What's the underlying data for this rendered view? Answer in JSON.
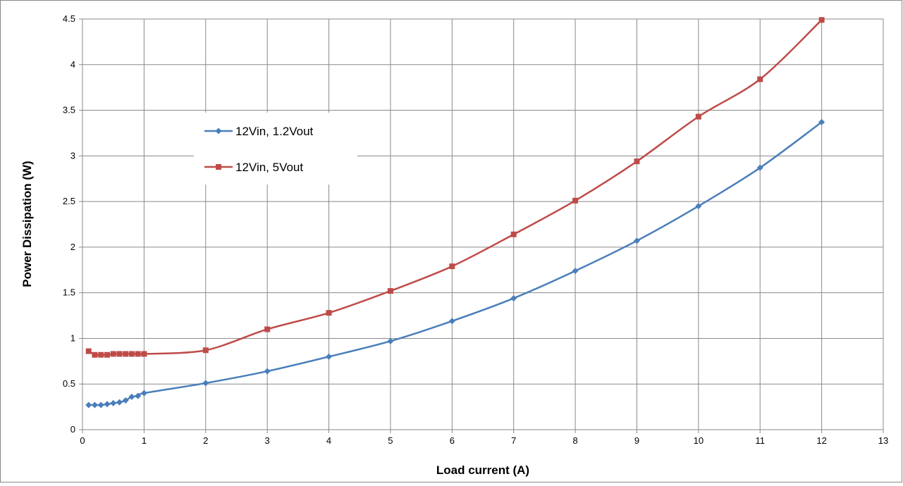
{
  "chart_data": {
    "type": "line",
    "title": "",
    "xlabel": "Load current (A)",
    "ylabel": "Power Dissipation (W)",
    "xlim": [
      0,
      13
    ],
    "ylim": [
      0,
      4.5
    ],
    "xticks": [
      0,
      1,
      2,
      3,
      4,
      5,
      6,
      7,
      8,
      9,
      10,
      11,
      12,
      13
    ],
    "yticks": [
      0,
      0.5,
      1,
      1.5,
      2,
      2.5,
      3,
      3.5,
      4,
      4.5
    ],
    "grid": true,
    "legend_position": "upper-left",
    "series": [
      {
        "name": "12Vin, 1.2Vout",
        "color": "#4a7ebb",
        "marker": "diamond",
        "x": [
          0.1,
          0.2,
          0.3,
          0.4,
          0.5,
          0.6,
          0.7,
          0.8,
          0.9,
          1,
          2,
          3,
          4,
          5,
          6,
          7,
          8,
          9,
          10,
          11,
          12
        ],
        "y": [
          0.27,
          0.27,
          0.27,
          0.28,
          0.29,
          0.3,
          0.32,
          0.36,
          0.37,
          0.4,
          0.51,
          0.64,
          0.8,
          0.97,
          1.19,
          1.44,
          1.74,
          2.07,
          2.45,
          2.87,
          3.37
        ]
      },
      {
        "name": "12Vin, 5Vout",
        "color": "#be4b48",
        "marker": "square",
        "x": [
          0.1,
          0.2,
          0.3,
          0.4,
          0.5,
          0.6,
          0.7,
          0.8,
          0.9,
          1,
          2,
          3,
          4,
          5,
          6,
          7,
          8,
          9,
          10,
          11,
          12
        ],
        "y": [
          0.86,
          0.82,
          0.82,
          0.82,
          0.83,
          0.83,
          0.83,
          0.83,
          0.83,
          0.83,
          0.87,
          1.1,
          1.28,
          1.52,
          1.79,
          2.14,
          2.51,
          2.94,
          3.43,
          3.84,
          4.49
        ]
      }
    ]
  }
}
